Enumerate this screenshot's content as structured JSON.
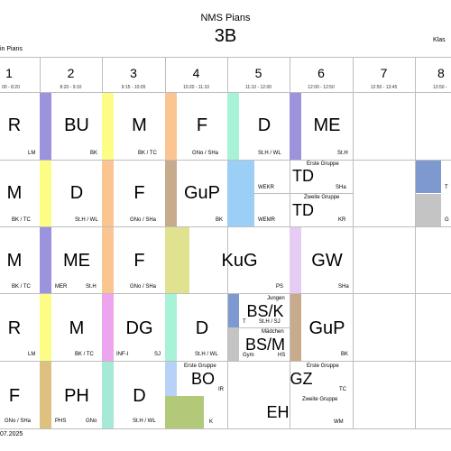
{
  "header": {
    "school": "NMS Pians",
    "klasse": "3B",
    "left_label": "in Pians",
    "right_label": "Klas",
    "footer": "07.2025"
  },
  "periods": [
    {
      "num": "1",
      "time": "00 - 8:20"
    },
    {
      "num": "2",
      "time": "8:20 - 9:10"
    },
    {
      "num": "3",
      "time": "9:15 - 10:05"
    },
    {
      "num": "4",
      "time": "10:20 - 11:10"
    },
    {
      "num": "5",
      "time": "11:10 - 12:00"
    },
    {
      "num": "6",
      "time": "12:00 - 12:50"
    },
    {
      "num": "7",
      "time": "12:50 - 13:45"
    },
    {
      "num": "8",
      "time": "13:50 -"
    }
  ],
  "colors": {
    "purple": "#9b94dc",
    "yellow": "#fdfd86",
    "peach": "#fbc592",
    "mint": "#a8f2d8",
    "tan": "#c8aa8d",
    "lightblue": "#9ccff5",
    "olive": "#e0e28f",
    "lavender": "#e6ccf5",
    "violet": "#eca5ee",
    "grey": "#c4c4c4",
    "gold": "#dcc27e",
    "sky": "#b7d2f6",
    "green": "#b2c97a",
    "steel": "#7e99cf",
    "teal": "#a5e9d6"
  },
  "rows": {
    "r1": {
      "c1": {
        "subject": "R",
        "teacher": "LM"
      },
      "c2": {
        "subject": "BU",
        "teacher": "BK"
      },
      "c3": {
        "subject": "M",
        "teacher": "BK / TC"
      },
      "c4": {
        "subject": "F",
        "teacher": "GNo / SHa"
      },
      "c5": {
        "subject": "D",
        "teacher": "St.H / WL"
      },
      "c6": {
        "subject": "ME",
        "teacher": "St.H"
      }
    },
    "r2": {
      "c1": {
        "subject": "M",
        "teacher": "BK / TC"
      },
      "c2": {
        "subject": "D",
        "teacher": "St.H / WL"
      },
      "c3": {
        "subject": "F",
        "teacher": "GNo / SHa"
      },
      "c4": {
        "subject": "GuP",
        "teacher": "BK"
      },
      "c5a": {
        "group": "Erste Gruppe",
        "subject": "TD",
        "room": "WEKR",
        "teacher": "SHa"
      },
      "c5b": {
        "group": "Zweite Gruppe",
        "subject": "TD",
        "room": "WEMR",
        "teacher": "KR"
      },
      "c8": {
        "teacher1": "T",
        "teacher2": "G"
      }
    },
    "r3": {
      "c1": {
        "subject": "M",
        "teacher": "BK / TC"
      },
      "c2": {
        "subject": "ME",
        "room": "MER",
        "teacher": "St.H"
      },
      "c3": {
        "subject": "F",
        "teacher": "GNo / SHa"
      },
      "c4": {
        "subject": "KuG",
        "teacher": "PS"
      },
      "c6": {
        "subject": "GW",
        "teacher": "SHa"
      }
    },
    "r4": {
      "c1": {
        "subject": "R",
        "teacher": "LM"
      },
      "c2": {
        "subject": "M",
        "teacher": "BK / TC"
      },
      "c3": {
        "subject": "DG",
        "room": "INF-I",
        "teacher": "SJ"
      },
      "c4": {
        "subject": "D",
        "teacher": "St.H / WL"
      },
      "c5a": {
        "group": "Jungen",
        "subject": "BS/K",
        "room": "T",
        "teacher": "St.H / SJ"
      },
      "c5b": {
        "group": "Mädchen",
        "subject": "BS/M",
        "room": "Gym",
        "teacher": "HS"
      },
      "c6": {
        "subject": "GuP",
        "teacher": "BK"
      }
    },
    "r5": {
      "c1": {
        "subject": "F",
        "teacher": "GNo / SHa"
      },
      "c2": {
        "subject": "PH",
        "room": "PHS",
        "teacher": "GNo"
      },
      "c3": {
        "subject": "D",
        "teacher": "St.H / WL"
      },
      "c4a": {
        "group": "Erste Gruppe",
        "subject": "BO",
        "teacher": "IR"
      },
      "c4b": {
        "teacher": "K"
      },
      "c6a": {
        "group": "Erste Gruppe",
        "subject": "GZ",
        "teacher": "TC"
      },
      "c6b": {
        "group": "Zweite Gruppe",
        "subject": "EH",
        "teacher": "WM"
      }
    }
  }
}
